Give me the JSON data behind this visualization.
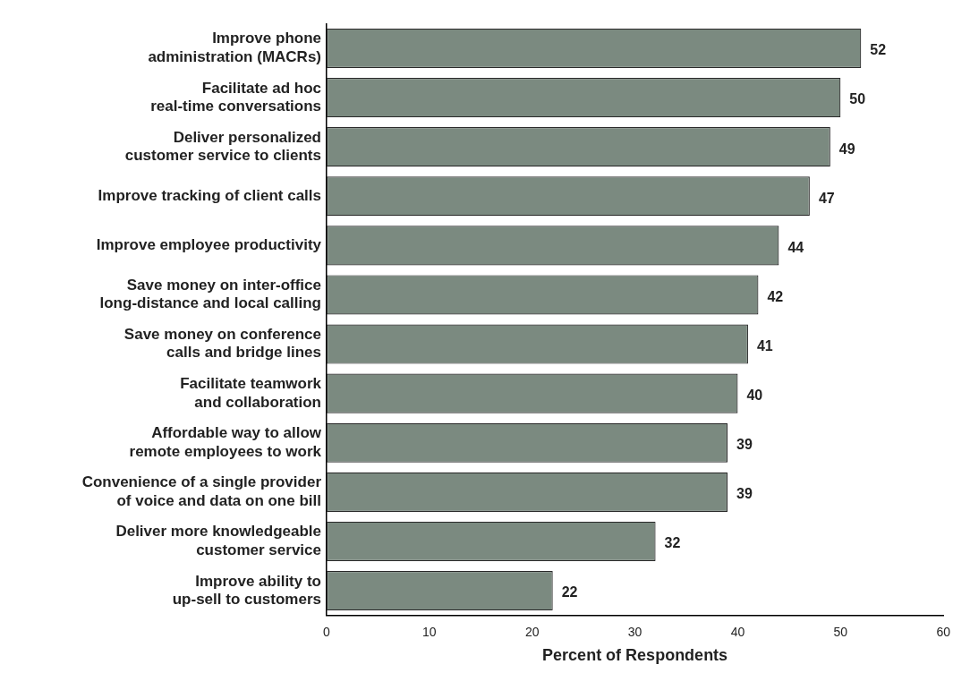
{
  "chart_data": {
    "type": "bar",
    "orientation": "horizontal",
    "xlabel": "Percent of Respondents",
    "categories": [
      "Improve phone\nadministration (MACRs)",
      "Facilitate ad hoc\nreal-time conversations",
      "Deliver personalized\ncustomer service to clients",
      "Improve tracking of client calls",
      "Improve employee productivity",
      "Save money on inter-office\nlong-distance and local calling",
      "Save money on conference\ncalls and bridge lines",
      "Facilitate teamwork\nand collaboration",
      "Affordable way to allow\nremote employees to work",
      "Convenience of a single provider\nof voice and data on one bill",
      "Deliver more knowledgeable\ncustomer service",
      "Improve ability to\nup-sell to customers"
    ],
    "values": [
      52,
      50,
      49,
      47,
      44,
      42,
      41,
      40,
      39,
      39,
      32,
      22
    ],
    "color": "#7b8a80",
    "xlim": [
      0,
      60
    ],
    "xticks": [
      0,
      10,
      20,
      30,
      40,
      50,
      60
    ],
    "data_labels": true,
    "grid": false,
    "legend": false
  }
}
